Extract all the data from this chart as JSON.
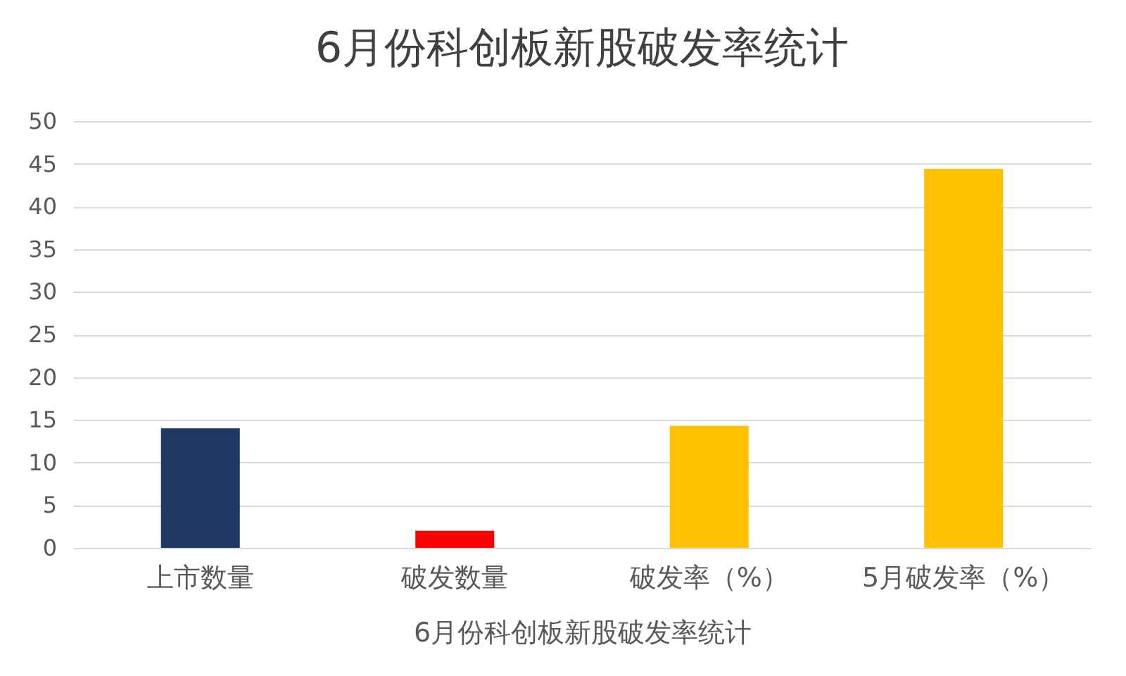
{
  "chart_data": {
    "type": "bar",
    "title": "6月份科创板新股破发率统计",
    "xlabel": "6月份科创板新股破发率统计",
    "categories": [
      "上市数量",
      "破发数量",
      "破发率（%）",
      "5月破发率（%）"
    ],
    "values": [
      14,
      2,
      14.3,
      44.4
    ],
    "colors": [
      "#203864",
      "#ff0000",
      "#ffc000",
      "#ffc000"
    ],
    "ylim": [
      0,
      50
    ],
    "yticks": [
      0,
      5,
      10,
      15,
      20,
      25,
      30,
      35,
      40,
      45,
      50
    ],
    "grid": "y"
  }
}
